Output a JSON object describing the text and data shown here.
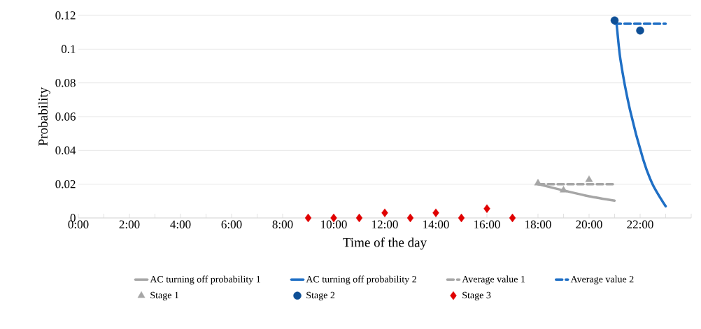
{
  "chart_data": {
    "type": "line",
    "xlabel": "Time of the day",
    "ylabel": "Probability",
    "xlim": [
      0,
      24
    ],
    "ylim": [
      0,
      0.12
    ],
    "xticks": [
      {
        "value": 0,
        "label": "0:00"
      },
      {
        "value": 1,
        "label": null
      },
      {
        "value": 2,
        "label": "2:00"
      },
      {
        "value": 3,
        "label": null
      },
      {
        "value": 4,
        "label": "4:00"
      },
      {
        "value": 5,
        "label": null
      },
      {
        "value": 6,
        "label": "6:00"
      },
      {
        "value": 7,
        "label": null
      },
      {
        "value": 8,
        "label": "8:00"
      },
      {
        "value": 9,
        "label": null
      },
      {
        "value": 10,
        "label": "10:00"
      },
      {
        "value": 11,
        "label": null
      },
      {
        "value": 12,
        "label": "12:00"
      },
      {
        "value": 13,
        "label": null
      },
      {
        "value": 14,
        "label": "14:00"
      },
      {
        "value": 15,
        "label": null
      },
      {
        "value": 16,
        "label": "16:00"
      },
      {
        "value": 17,
        "label": null
      },
      {
        "value": 18,
        "label": "18:00"
      },
      {
        "value": 19,
        "label": null
      },
      {
        "value": 20,
        "label": "20:00"
      },
      {
        "value": 21,
        "label": null
      },
      {
        "value": 22,
        "label": "22:00"
      },
      {
        "value": 23,
        "label": null
      },
      {
        "value": 24,
        "label": null
      }
    ],
    "yticks": [
      0,
      0.02,
      0.04,
      0.06,
      0.08,
      0.1,
      0.12
    ],
    "grid": "y",
    "legend": "bottom",
    "series": [
      {
        "name": "AC turning off probability 1",
        "color": "#a6a6a6",
        "marker": "none",
        "line_style": "solid",
        "x": [
          18,
          19,
          20,
          21
        ],
        "values": [
          0.02,
          0.0163,
          0.0128,
          0.0102
        ]
      },
      {
        "name": "AC turning off probability 2",
        "color": "#1f6fc5",
        "marker": "none",
        "line_style": "solid",
        "x": [
          21,
          21.07,
          21.23,
          21.6,
          22.12,
          22.49,
          23
        ],
        "values": [
          0.117,
          0.1159,
          0.0937,
          0.0642,
          0.0347,
          0.0199,
          0.0069
        ]
      },
      {
        "name": "Average value 1",
        "color": "#a6a6a6",
        "marker": "none",
        "line_style": "dashed",
        "x": [
          18,
          21
        ],
        "values": [
          0.02,
          0.02
        ]
      },
      {
        "name": "Average value 2",
        "color": "#1f6fc5",
        "marker": "none",
        "line_style": "dashed",
        "x": [
          21,
          23
        ],
        "values": [
          0.115,
          0.115
        ]
      },
      {
        "name": "Stage 1",
        "type": "scatter",
        "color": "#a6a6a6",
        "marker": "triangle",
        "x": [
          18,
          19,
          20
        ],
        "values": [
          0.0206,
          0.0164,
          0.0226
        ]
      },
      {
        "name": "Stage 2",
        "type": "scatter",
        "color": "#0e4f96",
        "marker": "circle",
        "x": [
          21,
          22
        ],
        "values": [
          0.117,
          0.111
        ]
      },
      {
        "name": "Stage 3",
        "type": "scatter",
        "color": "#e00000",
        "marker": "diamond",
        "x": [
          9,
          10,
          11,
          12,
          13,
          14,
          15,
          16,
          17
        ],
        "values": [
          0,
          0,
          0,
          0.003,
          0,
          0.003,
          0,
          0.0055,
          0
        ]
      }
    ]
  }
}
